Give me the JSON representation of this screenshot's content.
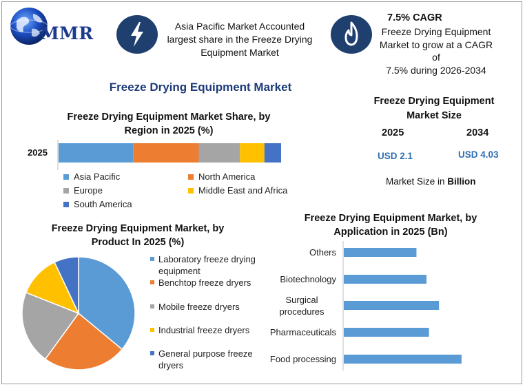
{
  "colors": {
    "navy": "#1f3f6f",
    "title_blue": "#1b3a78",
    "value_blue": "#2d6fb3",
    "asia_pacific": "#5b9bd5",
    "north_america": "#ed7d31",
    "europe": "#a5a5a5",
    "middle_east_africa": "#ffc000",
    "south_america": "#4472c4",
    "app_bar": "#5b9bd5"
  },
  "logo": {
    "text": "MMR",
    "icon": "globe-icon"
  },
  "highlights": {
    "box1": {
      "icon": "lightning-icon",
      "text_line1": "Asia Pacific Market Accounted",
      "text_line2": "largest share in the Freeze Drying",
      "text_line3": "Equipment Market"
    },
    "box2": {
      "icon": "flame-icon",
      "title": "7.5% CAGR",
      "text_line1": "Freeze Drying Equipment",
      "text_line2": "Market to grow at a CAGR of",
      "text_line3": "7.5% during 2026-2034"
    }
  },
  "main_title": "Freeze Drying Equipment Market",
  "market_size": {
    "title_line1": "Freeze Drying Equipment",
    "title_line2": "Market Size",
    "year1": "2025",
    "year2": "2034",
    "value1": "USD 2.1",
    "value2": "USD 4.03",
    "unit_prefix": "Market Size in",
    "unit_bold": "Billion"
  },
  "chart_data": [
    {
      "type": "bar",
      "orientation": "horizontal-stacked",
      "title_line1": "Freeze Drying Equipment Market Share, by",
      "title_line2": "Region in 2025 (%)",
      "categories": [
        "2025"
      ],
      "series": [
        {
          "name": "Asia Pacific",
          "values": [
            33.5
          ]
        },
        {
          "name": "North America",
          "values": [
            29.5
          ]
        },
        {
          "name": "Europe",
          "values": [
            18.5
          ]
        },
        {
          "name": "Middle East and Africa",
          "values": [
            11.0
          ]
        },
        {
          "name": "South America",
          "values": [
            7.5
          ]
        }
      ],
      "legend_position": "bottom"
    },
    {
      "type": "pie",
      "title_line1": "Freeze Drying Equipment Market, by",
      "title_line2": "Product In 2025 (%)",
      "slices": [
        {
          "name_line1": "Laboratory freeze drying",
          "name_line2": "equipment",
          "value": 36
        },
        {
          "name_line1": "Benchtop freeze dryers",
          "name_line2": "",
          "value": 24
        },
        {
          "name_line1": "Mobile freeze dryers",
          "name_line2": "",
          "value": 21
        },
        {
          "name_line1": "Industrial freeze dryers",
          "name_line2": "",
          "value": 12
        },
        {
          "name_line1": "General purpose freeze",
          "name_line2": "dryers",
          "value": 7
        }
      ],
      "legend_position": "right"
    },
    {
      "type": "bar",
      "orientation": "horizontal",
      "title_line1": "Freeze Drying Equipment Market, by",
      "title_line2": "Application in 2025 (Bn)",
      "categories": [
        {
          "line1": "Others",
          "line2": ""
        },
        {
          "line1": "Biotechnology",
          "line2": ""
        },
        {
          "line1": "Surgical",
          "line2": "procedures"
        },
        {
          "line1": "Pharmaceuticals",
          "line2": ""
        },
        {
          "line1": "Food processing",
          "line2": ""
        }
      ],
      "values": [
        0.29,
        0.33,
        0.38,
        0.34,
        0.47
      ],
      "xlim": [
        0,
        0.55
      ]
    }
  ]
}
